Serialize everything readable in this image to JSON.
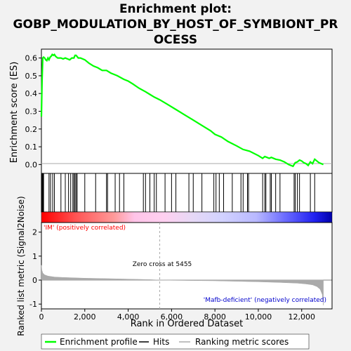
{
  "title_line1": "Enrichment plot:",
  "title_line2": "GOBP_MODULATION_BY_HOST_OF_SYMBIONT_PR",
  "title_line3": "OCESS",
  "colors": {
    "es_line": "#00ff00",
    "hits": "#000000",
    "metric": "#aaaaaa",
    "pos_label": "#ff0000",
    "neg_label": "#0000cc",
    "zero_line": "#aaaaaa"
  },
  "chart_data": {
    "type": "line",
    "top": {
      "ylabel": "Enrichment score (ES)",
      "yticks": [
        "0.0",
        "0.1",
        "0.2",
        "0.3",
        "0.4",
        "0.5",
        "0.6"
      ],
      "ylim": [
        -0.05,
        0.65
      ],
      "es_profile": {
        "x": [
          0,
          30,
          60,
          100,
          150,
          200,
          250,
          300,
          350,
          400,
          450,
          500,
          550,
          600,
          650,
          700,
          750,
          800,
          900,
          1000,
          1100,
          1200,
          1300,
          1400,
          1500,
          1550,
          1600,
          1700,
          1800,
          2000,
          2200,
          2400,
          2600,
          2800,
          3000,
          3200,
          3500,
          3800,
          4000,
          4200,
          4500,
          4800,
          5000,
          5200,
          5455,
          5800,
          6200,
          6600,
          7000,
          7400,
          7800,
          8000,
          8300,
          8600,
          9000,
          9300,
          9600,
          10000,
          10200,
          10300,
          10400,
          10500,
          10600,
          10800,
          11000,
          11200,
          11400,
          11600,
          11700,
          11800,
          11900,
          12000,
          12100,
          12200,
          12300,
          12400,
          12500,
          12600,
          12700,
          12800,
          13000
        ],
        "y": [
          0.27,
          0.47,
          0.6,
          0.605,
          0.6,
          0.59,
          0.585,
          0.6,
          0.59,
          0.605,
          0.61,
          0.62,
          0.615,
          0.62,
          0.61,
          0.605,
          0.6,
          0.6,
          0.6,
          0.595,
          0.6,
          0.595,
          0.59,
          0.6,
          0.6,
          0.615,
          0.615,
          0.6,
          0.6,
          0.59,
          0.57,
          0.555,
          0.545,
          0.53,
          0.53,
          0.515,
          0.5,
          0.48,
          0.47,
          0.455,
          0.43,
          0.41,
          0.395,
          0.38,
          0.365,
          0.34,
          0.31,
          0.28,
          0.25,
          0.22,
          0.19,
          0.17,
          0.155,
          0.13,
          0.105,
          0.085,
          0.075,
          0.05,
          0.035,
          0.045,
          0.04,
          0.035,
          0.04,
          0.03,
          0.025,
          0.015,
          0.0,
          -0.01,
          0.01,
          0.015,
          0.025,
          0.02,
          0.01,
          0.005,
          -0.005,
          0.015,
          0.005,
          0.03,
          0.02,
          0.01,
          0.0
        ]
      }
    },
    "hits": {
      "x": [
        30,
        50,
        80,
        100,
        350,
        420,
        520,
        600,
        900,
        1100,
        1250,
        1350,
        1450,
        1500,
        1550,
        1600,
        1650,
        2000,
        2500,
        3000,
        3050,
        3400,
        3600,
        3800,
        4700,
        4800,
        5000,
        5200,
        5300,
        5700,
        6000,
        6200,
        6800,
        7000,
        7400,
        7950,
        8050,
        8200,
        8400,
        8800,
        9200,
        9300,
        9500,
        9550,
        10200,
        10300,
        10350,
        10550,
        10600,
        10800,
        11000,
        11650,
        11700,
        11800,
        11900,
        12400,
        12600
      ]
    },
    "bottom": {
      "ylabel": "Ranked list metric (Signal2Noise)",
      "xlabel": "Rank in Ordered Dataset",
      "yticks": [
        "-1",
        "0",
        "1",
        "2"
      ],
      "ylim": [
        -1.2,
        2.4
      ],
      "xticks": [
        "0",
        "2,000",
        "4,000",
        "6,000",
        "8,000",
        "10,000",
        "12,000"
      ],
      "xtick_values": [
        0,
        2000,
        4000,
        6000,
        8000,
        10000,
        12000
      ],
      "xlim": [
        0,
        13400
      ],
      "zero_cross": 5455,
      "metric_profile": {
        "x": [
          0,
          20,
          60,
          150,
          300,
          600,
          1000,
          2000,
          3000,
          4000,
          5000,
          5455,
          6000,
          7000,
          8000,
          9000,
          10000,
          11000,
          11800,
          12200,
          12500,
          12700,
          12850,
          12950,
          13000
        ],
        "y": [
          0.62,
          0.42,
          0.3,
          0.22,
          0.17,
          0.13,
          0.11,
          0.08,
          0.06,
          0.04,
          0.02,
          0.0,
          -0.01,
          -0.02,
          -0.03,
          -0.05,
          -0.07,
          -0.1,
          -0.13,
          -0.16,
          -0.2,
          -0.27,
          -0.38,
          -0.6,
          -1.05
        ]
      }
    },
    "annotations": {
      "pos": "'IM' (positively correlated)",
      "neg": "'Mafb-deficient' (negatively correlated)",
      "zero_cross": "Zero cross at 5455"
    },
    "legend": [
      "Enrichment profile",
      "Hits",
      "Ranking metric scores"
    ]
  }
}
